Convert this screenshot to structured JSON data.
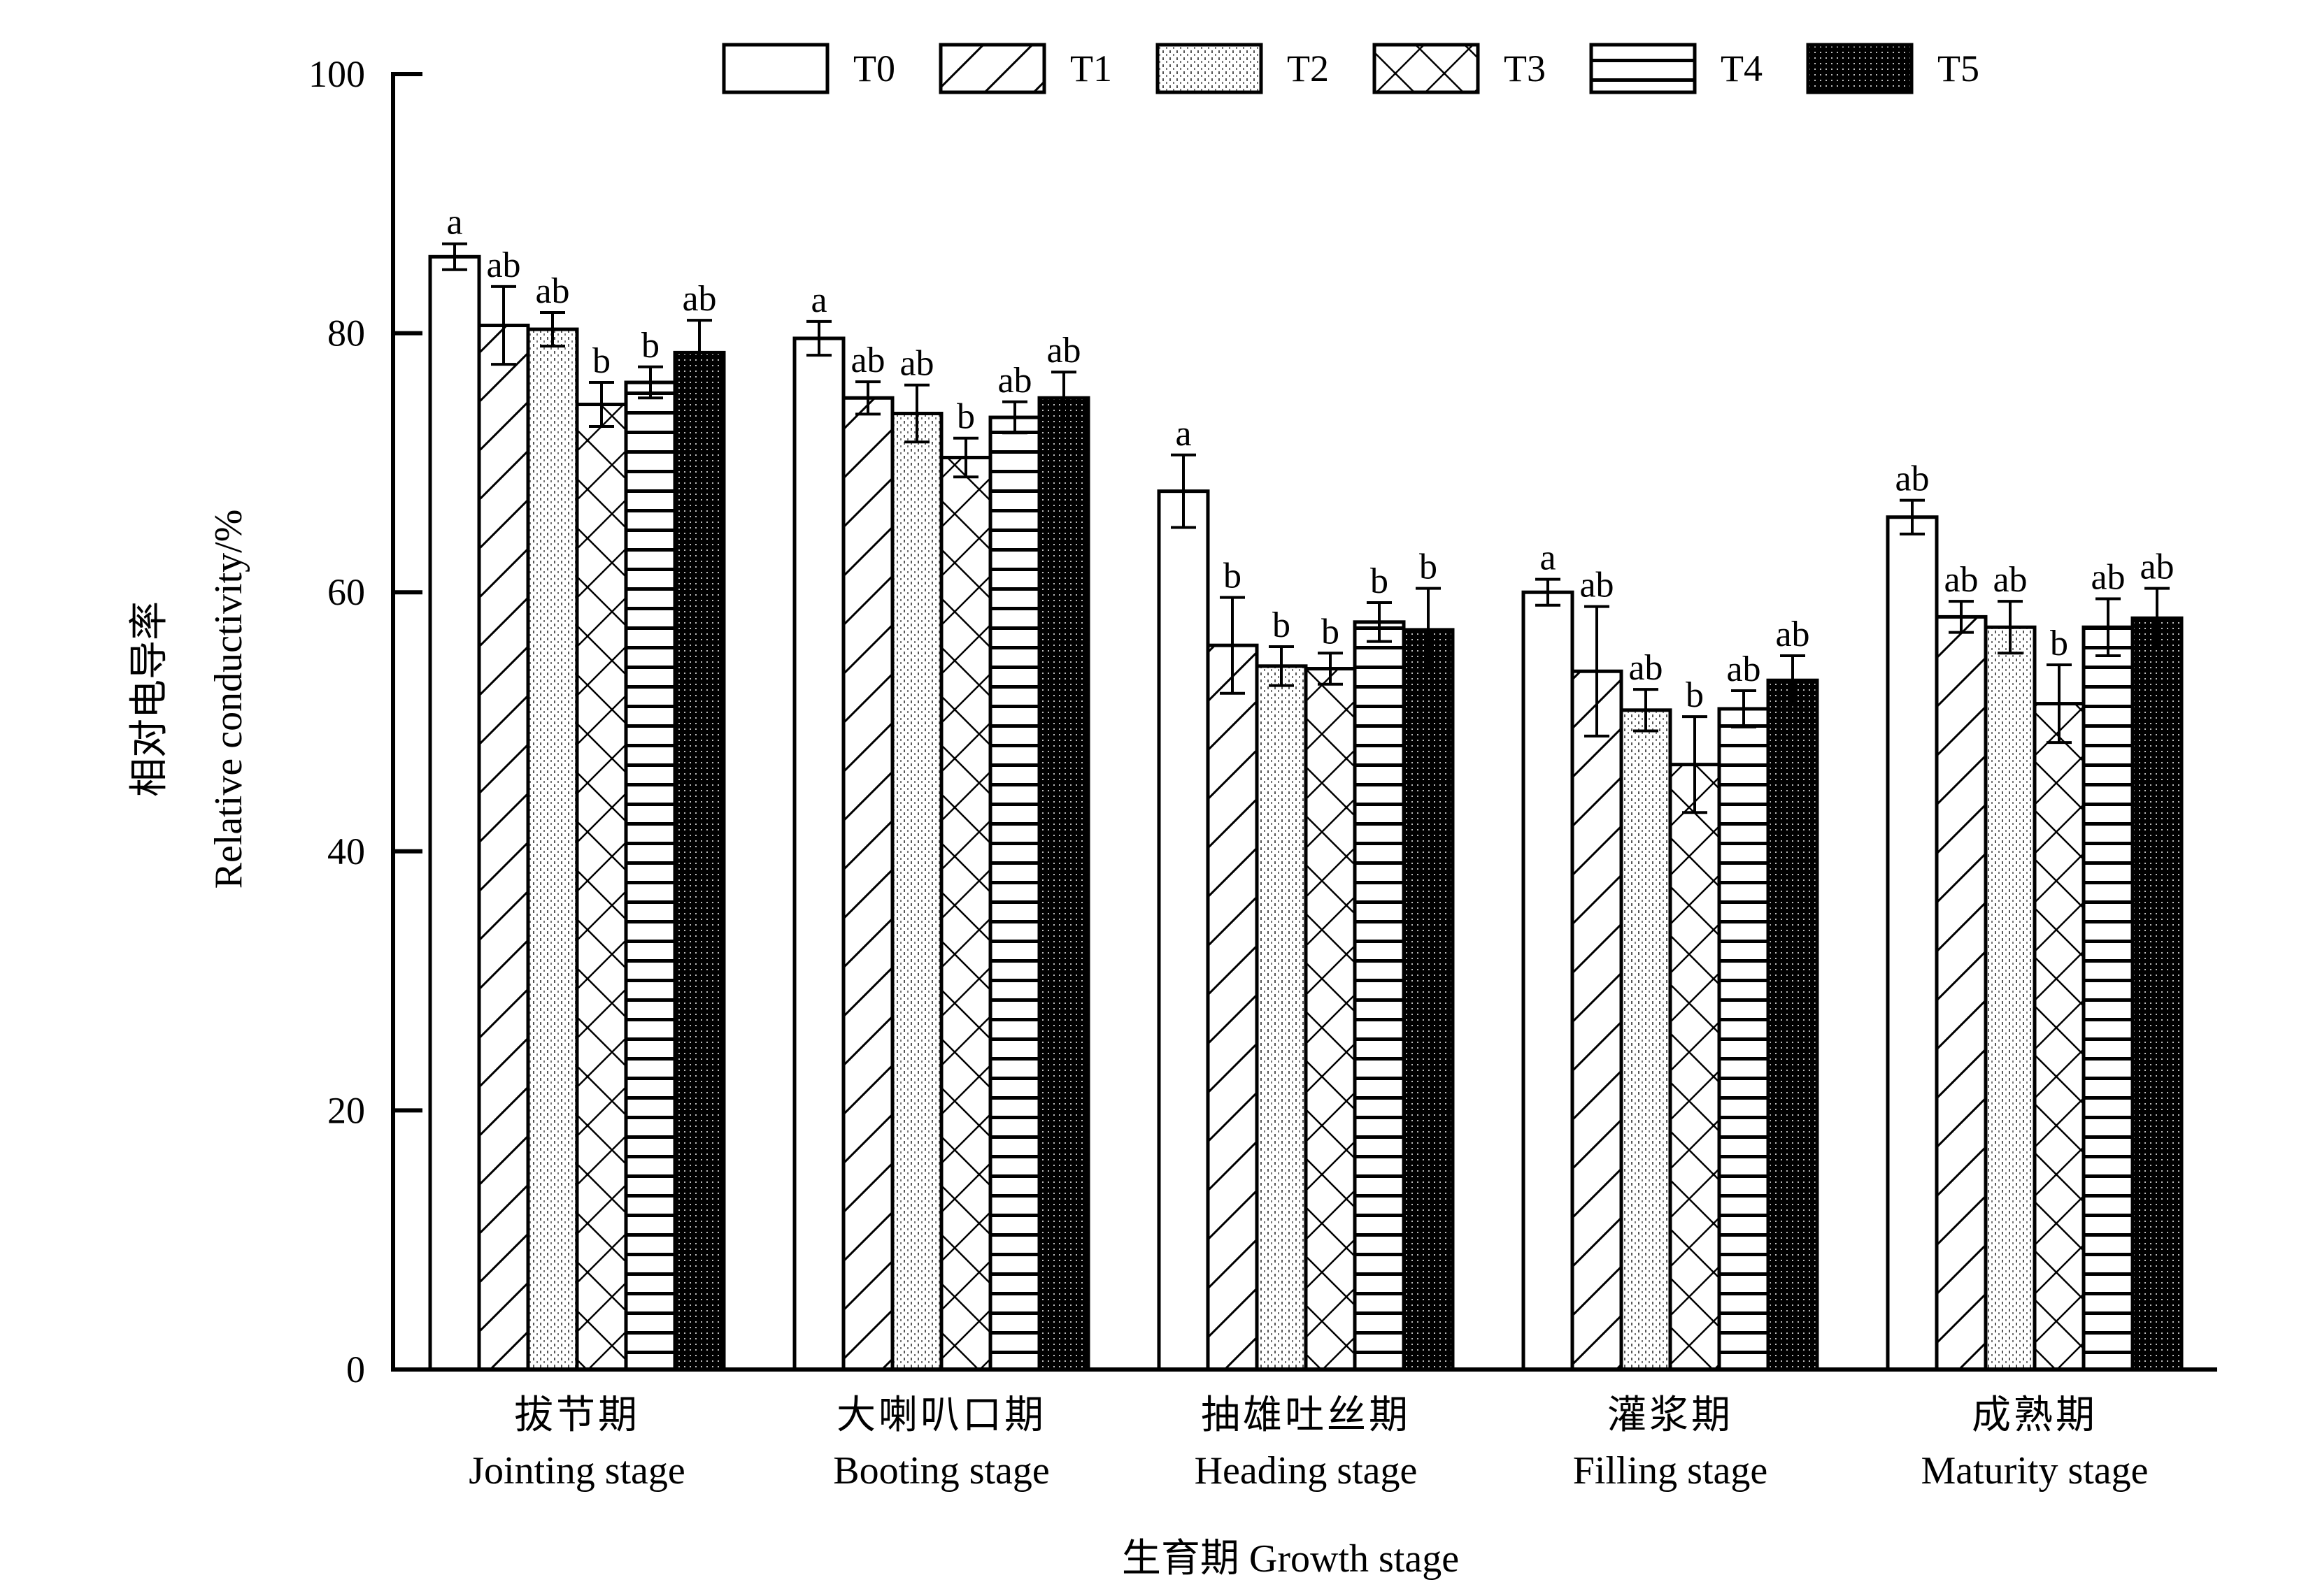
{
  "chart_data": {
    "type": "bar",
    "title": "",
    "xlabel": "生育期 Growth stage",
    "ylabel": [
      "相对电导率",
      "Relative conductivity/%"
    ],
    "ylim": [
      0,
      100
    ],
    "yticks": [
      0,
      20,
      40,
      60,
      80,
      100
    ],
    "grid": false,
    "legend_placement": "top",
    "categories": [
      [
        "拔节期",
        "Jointing stage"
      ],
      [
        "大喇叭口期",
        "Booting stage"
      ],
      [
        "抽雄吐丝期",
        "Heading stage"
      ],
      [
        "灌浆期",
        "Filling stage"
      ],
      [
        "成熟期",
        "Maturity stage"
      ]
    ],
    "series": [
      {
        "name": "T0",
        "pattern": "blank",
        "values": [
          85.9,
          79.6,
          67.8,
          60.0,
          65.8
        ],
        "errors": [
          1.0,
          1.3,
          2.8,
          1.0,
          1.3
        ],
        "letters": [
          "a",
          "a",
          "a",
          "a",
          "ab"
        ]
      },
      {
        "name": "T1",
        "pattern": "diagonal",
        "values": [
          80.6,
          75.0,
          55.9,
          53.9,
          58.1
        ],
        "errors": [
          3.0,
          1.25,
          3.7,
          5.0,
          1.2
        ],
        "letters": [
          "ab",
          "ab",
          "b",
          "ab",
          "ab"
        ]
      },
      {
        "name": "T2",
        "pattern": "light-dots",
        "values": [
          80.3,
          73.8,
          54.3,
          50.9,
          57.3
        ],
        "errors": [
          1.3,
          2.2,
          1.5,
          1.6,
          2.0
        ],
        "letters": [
          "ab",
          "ab",
          "b",
          "ab",
          "ab"
        ]
      },
      {
        "name": "T3",
        "pattern": "crosshatch",
        "values": [
          74.5,
          70.4,
          54.1,
          46.7,
          51.4
        ],
        "errors": [
          1.7,
          1.5,
          1.2,
          3.7,
          3.0
        ],
        "letters": [
          "b",
          "b",
          "b",
          "b",
          "b"
        ]
      },
      {
        "name": "T4",
        "pattern": "horizontal",
        "values": [
          76.2,
          73.5,
          57.7,
          51.0,
          57.3
        ],
        "errors": [
          1.2,
          1.2,
          1.5,
          1.4,
          2.2
        ],
        "letters": [
          "b",
          "ab",
          "b",
          "ab",
          "ab"
        ]
      },
      {
        "name": "T5",
        "pattern": "dense-dots",
        "values": [
          78.5,
          75.0,
          57.1,
          53.2,
          58.0
        ],
        "errors": [
          2.5,
          2.0,
          3.2,
          1.9,
          2.3
        ],
        "letters": [
          "ab",
          "ab",
          "b",
          "ab",
          "ab"
        ]
      }
    ],
    "colors": {
      "ink": "#000000",
      "background": "#ffffff"
    }
  }
}
